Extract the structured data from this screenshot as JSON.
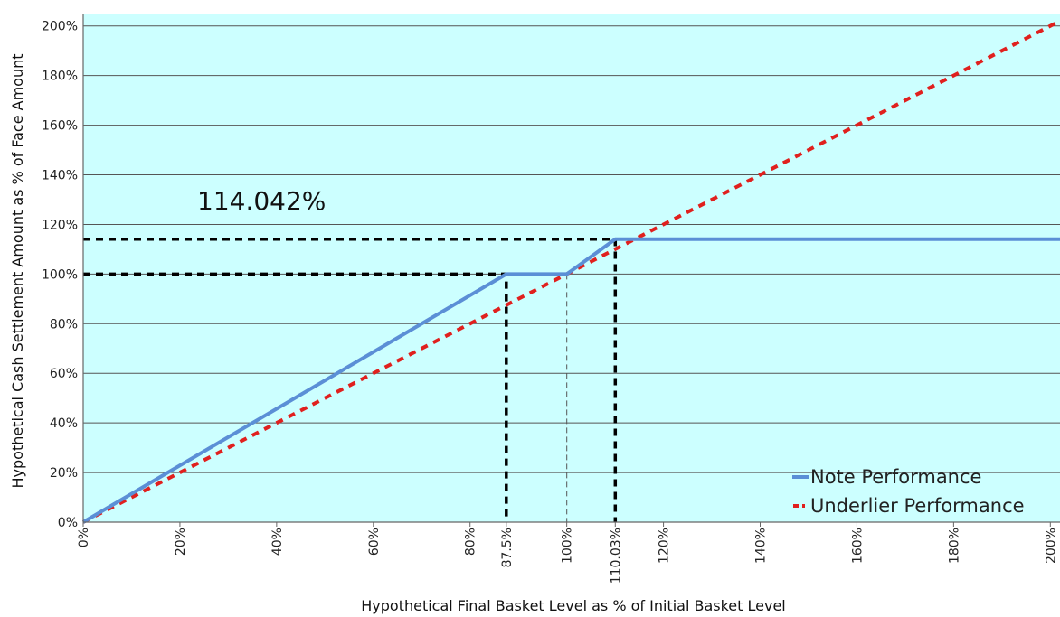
{
  "chart_data": {
    "type": "line",
    "title": "",
    "annotation": "114.042%",
    "xlabel": "Hypothetical Final Basket Level as % of Initial Basket Level",
    "ylabel": "Hypothetical Cash Settlement Amount as % of Face Amount",
    "xlim": [
      0,
      202
    ],
    "ylim": [
      0,
      205
    ],
    "x_ticks": [
      {
        "value": 0,
        "label": "0%"
      },
      {
        "value": 20,
        "label": "20%"
      },
      {
        "value": 40,
        "label": "40%"
      },
      {
        "value": 60,
        "label": "60%"
      },
      {
        "value": 80,
        "label": "80%"
      },
      {
        "value": 87.5,
        "label": "87.5%"
      },
      {
        "value": 100,
        "label": "100%"
      },
      {
        "value": 110.03,
        "label": "110.03%"
      },
      {
        "value": 120,
        "label": "120%"
      },
      {
        "value": 140,
        "label": "140%"
      },
      {
        "value": 160,
        "label": "160%"
      },
      {
        "value": 180,
        "label": "180%"
      },
      {
        "value": 200,
        "label": "200%"
      }
    ],
    "y_ticks": [
      {
        "value": 0,
        "label": "0%"
      },
      {
        "value": 20,
        "label": "20%"
      },
      {
        "value": 40,
        "label": "40%"
      },
      {
        "value": 60,
        "label": "60%"
      },
      {
        "value": 80,
        "label": "80%"
      },
      {
        "value": 100,
        "label": "100%"
      },
      {
        "value": 120,
        "label": "120%"
      },
      {
        "value": 140,
        "label": "140%"
      },
      {
        "value": 160,
        "label": "160%"
      },
      {
        "value": 180,
        "label": "180%"
      },
      {
        "value": 200,
        "label": "200%"
      }
    ],
    "grid": "horizontal",
    "legend_position": "bottom-right",
    "background_color": "#ccffff",
    "series": [
      {
        "name": "Note Performance",
        "color": "#5b8fd6",
        "style": "solid",
        "points": [
          [
            0,
            0
          ],
          [
            87.5,
            100
          ],
          [
            100,
            100
          ],
          [
            110.03,
            114.042
          ],
          [
            202,
            114.042
          ]
        ]
      },
      {
        "name": "Underlier Performance",
        "color": "#e0201e",
        "style": "dashed",
        "points": [
          [
            0,
            0
          ],
          [
            202,
            202
          ]
        ]
      }
    ],
    "reference_lines": [
      {
        "points": [
          [
            0,
            114.042
          ],
          [
            110.03,
            114.042
          ],
          [
            110.03,
            0
          ]
        ],
        "color": "#000000",
        "style": "dashed"
      },
      {
        "points": [
          [
            0,
            100
          ],
          [
            87.5,
            100
          ],
          [
            87.5,
            0
          ]
        ],
        "color": "#000000",
        "style": "dashed"
      },
      {
        "points": [
          [
            100,
            100
          ],
          [
            100,
            0
          ]
        ],
        "color": "#555555",
        "style": "thin-dashed"
      }
    ]
  }
}
